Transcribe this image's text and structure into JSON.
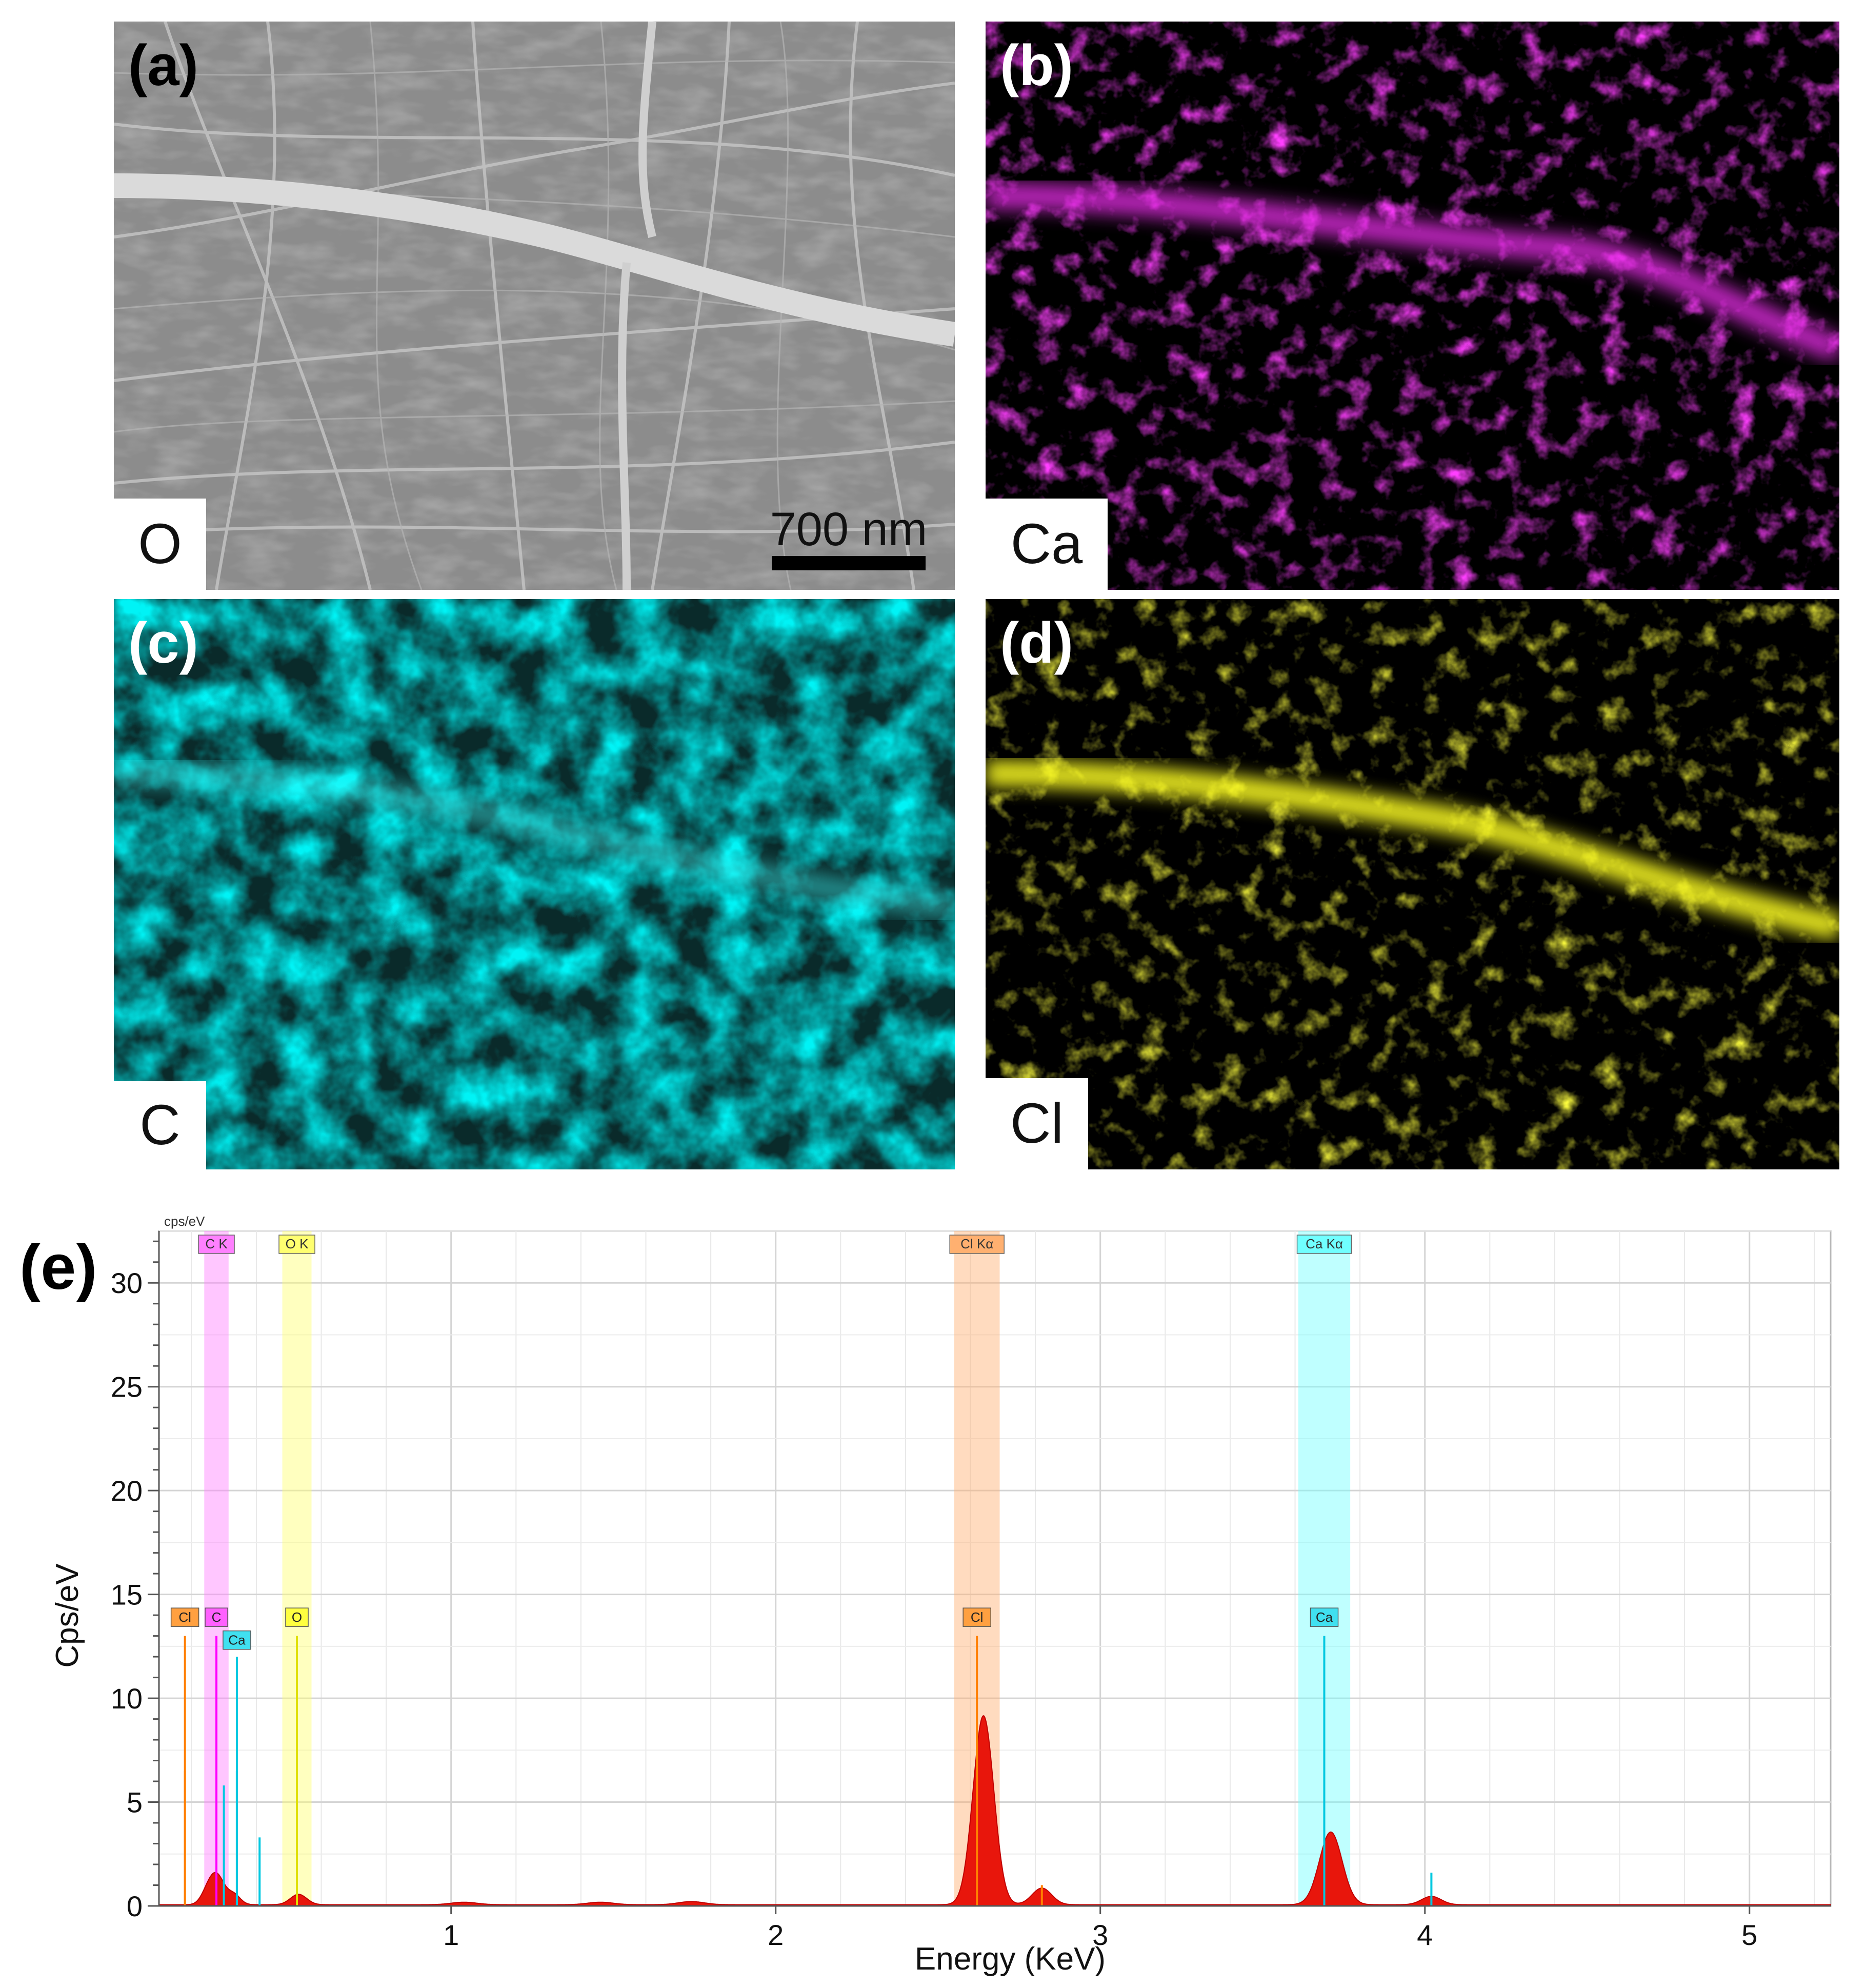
{
  "panels": {
    "a": {
      "label": "(a)",
      "element": "O",
      "scale_bar": "700 nm",
      "label_color": "#000000",
      "map_color": "#a0a0a0"
    },
    "b": {
      "label": "(b)",
      "element": "Ca",
      "label_color": "#ffffff",
      "map_color": "#ff10ff"
    },
    "c": {
      "label": "(c)",
      "element": "C",
      "label_color": "#ffffff",
      "map_color": "#00e0e8"
    },
    "d": {
      "label": "(d)",
      "element": "Cl",
      "label_color": "#ffffff",
      "map_color": "#ffff10"
    }
  },
  "panel_e_label": "(e)",
  "chart_data": {
    "type": "area",
    "title": "",
    "unit_label": "cps/eV",
    "xlabel": "Energy (KeV)",
    "ylabel": "Cps/eV",
    "xlim": [
      0.1,
      5.25
    ],
    "ylim": [
      0,
      32.5
    ],
    "xticks": [
      1,
      2,
      3,
      4,
      5
    ],
    "yticks": [
      0,
      5,
      10,
      15,
      20,
      25,
      30
    ],
    "grid": true,
    "spectrum_color": "#e8160c",
    "peaks": [
      {
        "center": 0.25,
        "height": 0.6,
        "width": 0.02
      },
      {
        "center": 0.28,
        "height": 1.3,
        "width": 0.022
      },
      {
        "center": 0.33,
        "height": 0.5,
        "width": 0.02
      },
      {
        "center": 0.53,
        "height": 0.5,
        "width": 0.025
      },
      {
        "center": 1.04,
        "height": 0.12,
        "width": 0.04
      },
      {
        "center": 1.46,
        "height": 0.12,
        "width": 0.04
      },
      {
        "center": 1.74,
        "height": 0.15,
        "width": 0.04
      },
      {
        "center": 2.64,
        "height": 9.1,
        "width": 0.032
      },
      {
        "center": 2.82,
        "height": 0.8,
        "width": 0.03
      },
      {
        "center": 3.71,
        "height": 3.5,
        "width": 0.035
      },
      {
        "center": 4.02,
        "height": 0.4,
        "width": 0.03
      }
    ],
    "element_bands": [
      {
        "label": "C K",
        "center": 0.277,
        "width": 0.075,
        "color": "#ff80ff"
      },
      {
        "label": "O K",
        "center": 0.525,
        "width": 0.09,
        "color": "#ffff70"
      },
      {
        "label": "Cl Kα",
        "center": 2.62,
        "width": 0.14,
        "color": "#ffb070"
      },
      {
        "label": "Ca Kα",
        "center": 3.69,
        "width": 0.16,
        "color": "#70ffff"
      }
    ],
    "element_lines": [
      {
        "label": "Cl",
        "x": 0.18,
        "height": 13.0,
        "color": "#ff8000",
        "tag_color": "#ffa040",
        "tag_y": 13.9
      },
      {
        "label": "C",
        "x": 0.277,
        "height": 13.0,
        "color": "#ff00ff",
        "tag_color": "#ff60ff",
        "tag_y": 13.9
      },
      {
        "label": "Ca",
        "x": 0.34,
        "height": 12.0,
        "color": "#00c8e0",
        "tag_color": "#40e0f0",
        "tag_y": 12.8
      },
      {
        "label": "O",
        "x": 0.525,
        "height": 13.0,
        "color": "#e0e000",
        "tag_color": "#ffff40",
        "tag_y": 13.9
      },
      {
        "label": "Cl",
        "x": 2.62,
        "height": 13.0,
        "color": "#ff8000",
        "tag_color": "#ffa040",
        "tag_y": 13.9
      },
      {
        "label": "Ca",
        "x": 3.69,
        "height": 13.0,
        "color": "#00c8e0",
        "tag_color": "#40e0f0",
        "tag_y": 13.9
      }
    ],
    "minor_lines": [
      {
        "x": 0.18,
        "height": 6.5,
        "color": "#ff8000"
      },
      {
        "x": 0.3,
        "height": 5.8,
        "color": "#00c8e0"
      },
      {
        "x": 0.34,
        "height": 6.5,
        "color": "#00c8e0"
      },
      {
        "x": 0.41,
        "height": 3.3,
        "color": "#00c8e0"
      },
      {
        "x": 2.82,
        "height": 1.0,
        "color": "#ff8000"
      },
      {
        "x": 3.69,
        "height": 6.2,
        "color": "#00c8e0"
      },
      {
        "x": 4.02,
        "height": 1.6,
        "color": "#00c8e0"
      }
    ]
  }
}
